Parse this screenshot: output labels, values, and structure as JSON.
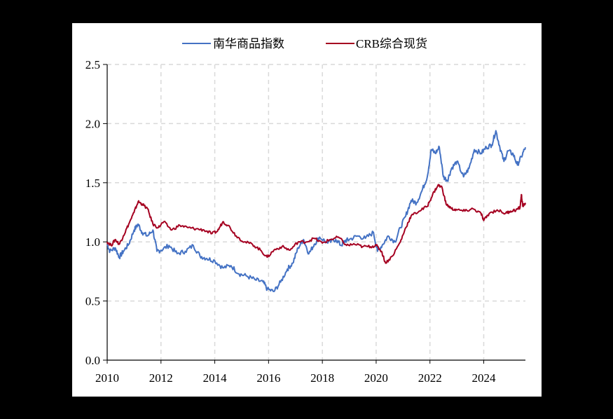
{
  "chart_data": {
    "type": "line",
    "title": "",
    "xlabel": "",
    "ylabel": "",
    "xlim": [
      2010,
      2025.55
    ],
    "ylim": [
      0,
      2.5
    ],
    "x_ticks": [
      "2010",
      "2012",
      "2014",
      "2016",
      "2018",
      "2020",
      "2022",
      "2024"
    ],
    "y_ticks": [
      "0.0",
      "0.5",
      "1.0",
      "1.5",
      "2.0",
      "2.5"
    ],
    "grid": true,
    "grid_style": "dashed",
    "legend_position": "top",
    "series": [
      {
        "name": "南华商品指数",
        "color": "#4472C4",
        "x": [
          2010.0,
          2010.1,
          2010.3,
          2010.45,
          2010.6,
          2010.8,
          2011.0,
          2011.15,
          2011.3,
          2011.5,
          2011.7,
          2011.85,
          2012.0,
          2012.3,
          2012.6,
          2012.9,
          2013.2,
          2013.45,
          2013.7,
          2014.0,
          2014.3,
          2014.6,
          2014.9,
          2015.2,
          2015.5,
          2015.8,
          2015.95,
          2016.2,
          2016.45,
          2016.7,
          2016.9,
          2017.1,
          2017.3,
          2017.5,
          2017.7,
          2017.9,
          2018.2,
          2018.5,
          2018.7,
          2018.85,
          2019.0,
          2019.3,
          2019.6,
          2019.9,
          2020.05,
          2020.25,
          2020.45,
          2020.7,
          2020.9,
          2021.1,
          2021.3,
          2021.5,
          2021.7,
          2021.9,
          2022.05,
          2022.2,
          2022.35,
          2022.5,
          2022.65,
          2022.8,
          2023.0,
          2023.25,
          2023.45,
          2023.65,
          2023.9,
          2024.1,
          2024.3,
          2024.45,
          2024.6,
          2024.75,
          2024.9,
          2025.1,
          2025.25,
          2025.4,
          2025.55
        ],
        "values": [
          0.98,
          0.92,
          0.95,
          0.87,
          0.92,
          0.98,
          1.1,
          1.15,
          1.08,
          1.05,
          1.1,
          0.92,
          0.93,
          0.97,
          0.9,
          0.92,
          0.97,
          0.88,
          0.86,
          0.84,
          0.78,
          0.8,
          0.73,
          0.71,
          0.68,
          0.66,
          0.6,
          0.58,
          0.66,
          0.77,
          0.82,
          0.95,
          1.02,
          0.9,
          0.98,
          1.04,
          0.99,
          1.02,
          0.97,
          1.01,
          1.02,
          1.05,
          1.03,
          1.08,
          0.92,
          0.98,
          1.05,
          1.0,
          1.12,
          1.22,
          1.35,
          1.33,
          1.43,
          1.55,
          1.78,
          1.75,
          1.8,
          1.55,
          1.52,
          1.62,
          1.68,
          1.55,
          1.62,
          1.78,
          1.75,
          1.8,
          1.82,
          1.94,
          1.8,
          1.68,
          1.77,
          1.74,
          1.65,
          1.72,
          1.8
        ]
      },
      {
        "name": "CRB综合现货",
        "color": "#A50021",
        "x": [
          2010.0,
          2010.15,
          2010.3,
          2010.45,
          2010.6,
          2010.8,
          2011.0,
          2011.15,
          2011.3,
          2011.5,
          2011.7,
          2011.9,
          2012.1,
          2012.4,
          2012.7,
          2013.0,
          2013.3,
          2013.6,
          2013.9,
          2014.1,
          2014.3,
          2014.5,
          2014.8,
          2015.1,
          2015.4,
          2015.7,
          2015.95,
          2016.2,
          2016.5,
          2016.8,
          2017.1,
          2017.4,
          2017.7,
          2018.0,
          2018.3,
          2018.6,
          2018.9,
          2019.2,
          2019.5,
          2019.8,
          2020.0,
          2020.2,
          2020.35,
          2020.6,
          2020.9,
          2021.1,
          2021.3,
          2021.6,
          2021.9,
          2022.1,
          2022.3,
          2022.45,
          2022.6,
          2022.8,
          2023.0,
          2023.3,
          2023.6,
          2023.9,
          2024.0,
          2024.2,
          2024.5,
          2024.8,
          2025.0,
          2025.2,
          2025.35,
          2025.4,
          2025.45,
          2025.55
        ],
        "values": [
          1.0,
          0.97,
          1.02,
          0.98,
          1.05,
          1.15,
          1.25,
          1.34,
          1.32,
          1.28,
          1.15,
          1.12,
          1.17,
          1.1,
          1.14,
          1.12,
          1.11,
          1.1,
          1.07,
          1.09,
          1.17,
          1.14,
          1.05,
          1.0,
          0.98,
          0.93,
          0.87,
          0.93,
          0.96,
          0.93,
          1.0,
          1.0,
          1.03,
          0.99,
          1.02,
          1.04,
          0.97,
          0.98,
          0.96,
          0.96,
          0.97,
          0.92,
          0.82,
          0.88,
          1.0,
          1.12,
          1.22,
          1.26,
          1.3,
          1.4,
          1.48,
          1.46,
          1.32,
          1.28,
          1.27,
          1.26,
          1.28,
          1.24,
          1.18,
          1.24,
          1.27,
          1.24,
          1.26,
          1.27,
          1.29,
          1.4,
          1.3,
          1.33
        ]
      }
    ]
  },
  "legend": {
    "items": [
      {
        "label": "南华商品指数",
        "color": "#4472C4"
      },
      {
        "label": "CRB综合现货",
        "color": "#A50021"
      }
    ]
  }
}
